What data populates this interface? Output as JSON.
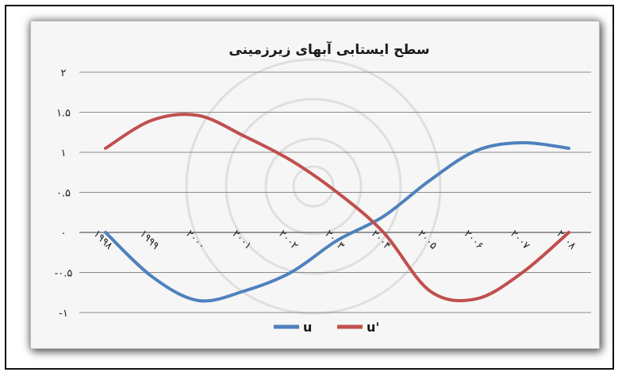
{
  "chart_data": {
    "type": "line",
    "title": "سطح ایستابی آبهای زیرزمینی",
    "categories": [
      "۱۹۹۸",
      "۱۹۹۹",
      "۲۰۰۰",
      "۲۰۰۱",
      "۲۰۰۲",
      "۲۰۰۳",
      "۲۰۰۴",
      "۲۰۰۵",
      "۲۰۰۶",
      "۲۰۰۷",
      "۲۰۰۸"
    ],
    "y_tick_labels": [
      "۲",
      "۱.۵",
      "۱",
      "۰.۵",
      "۰",
      "-۰.۵",
      "-۱"
    ],
    "y_tick_values": [
      2,
      1.5,
      1,
      0.5,
      0,
      -0.5,
      -1
    ],
    "ylim": [
      -1,
      2
    ],
    "grid": true,
    "legend_position": "bottom",
    "series": [
      {
        "name": "u",
        "color": "#4f81bd",
        "values": [
          0,
          -0.55,
          -0.85,
          -0.73,
          -0.5,
          -0.1,
          0.2,
          0.65,
          1.02,
          1.12,
          1.05
        ]
      },
      {
        "name": "u'",
        "color": "#c0504d",
        "values": [
          1.05,
          1.4,
          1.46,
          1.2,
          0.9,
          0.5,
          0.0,
          -0.73,
          -0.83,
          -0.5,
          0.0
        ]
      }
    ]
  }
}
